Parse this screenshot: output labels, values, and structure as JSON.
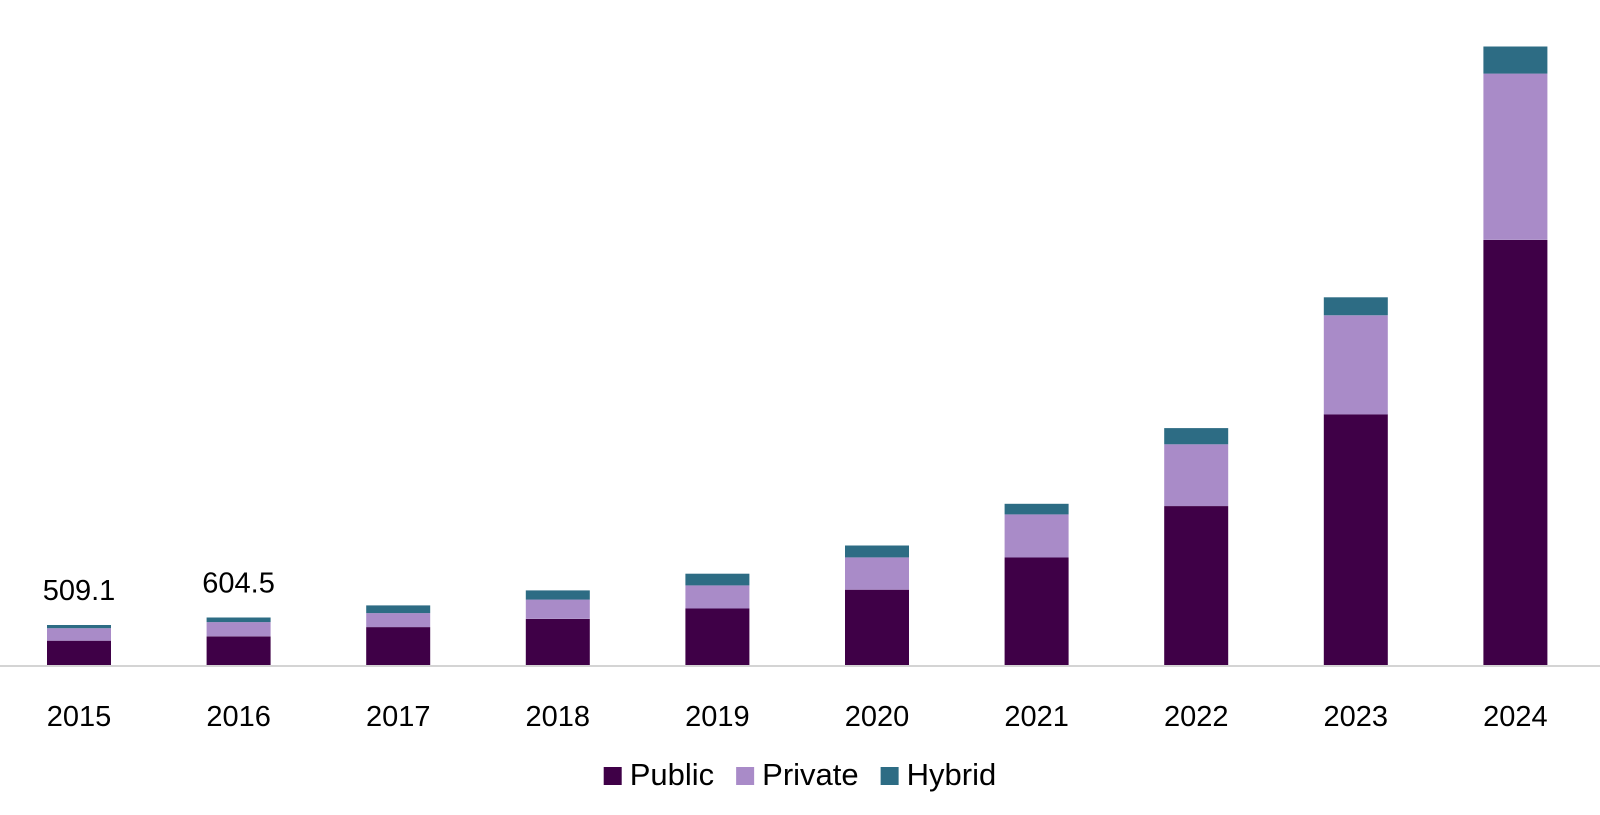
{
  "chart_data": {
    "type": "bar",
    "stacked": true,
    "title": "",
    "xlabel": "",
    "ylabel": "",
    "categories": [
      "2015",
      "2016",
      "2017",
      "2018",
      "2019",
      "2020",
      "2021",
      "2022",
      "2023",
      "2024"
    ],
    "series": [
      {
        "name": "Public",
        "color": "#3f0047",
        "values": [
          309.6,
          364.4,
          482.3,
          586.7,
          719.5,
          958.6,
          1368.1,
          2022.2,
          3189.0,
          5408.8
        ]
      },
      {
        "name": "Private",
        "color": "#a98bc8",
        "values": [
          159.2,
          181.0,
          177.7,
          244.9,
          293.4,
          410.5,
          548.0,
          785.1,
          1259.4,
          2114.9
        ]
      },
      {
        "name": "Hybrid",
        "color": "#2d6c84",
        "values": [
          40.3,
          59.1,
          98.2,
          117.4,
          148.5,
          151.3,
          135.4,
          206.5,
          229.2,
          345.2
        ]
      }
    ],
    "data_labels": [
      {
        "category": "2015",
        "text": "509.1"
      },
      {
        "category": "2016",
        "text": "604.5"
      }
    ],
    "ylim": [
      0,
      8000
    ],
    "y_axis_visible": false,
    "grid": false,
    "legend": {
      "position": "bottom",
      "items": [
        "Public",
        "Private",
        "Hybrid"
      ]
    }
  }
}
